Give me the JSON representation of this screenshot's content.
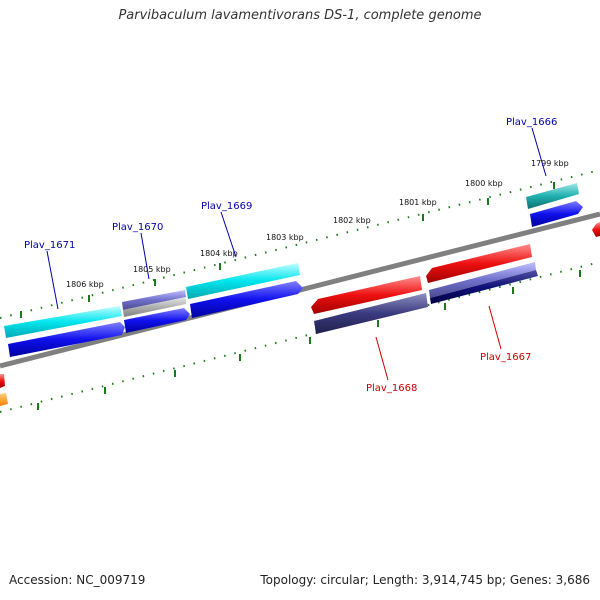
{
  "title": "Parvibaculum lavamentivorans DS-1, complete genome",
  "accession": "Accession: NC_009719",
  "summary": "Topology: circular; Length: 3,914,745 bp; Genes: 3,686",
  "scale_labels": [
    "1799 kbp",
    "1800 kbp",
    "1801 kbp",
    "1802 kbp",
    "1803 kbp",
    "1804 kbp",
    "1805 kbp",
    "1806 kbp"
  ],
  "genes": [
    {
      "id": "Plav_1666",
      "strand": "plus"
    },
    {
      "id": "Plav_1667",
      "strand": "minus"
    },
    {
      "id": "Plav_1668",
      "strand": "minus"
    },
    {
      "id": "Plav_1669",
      "strand": "plus"
    },
    {
      "id": "Plav_1670",
      "strand": "plus"
    },
    {
      "id": "Plav_1671",
      "strand": "plus"
    }
  ],
  "colors": {
    "label_plus": "#0000aa",
    "label_minus": "#cc0000",
    "backbone": "#808080",
    "ticks": "#1a7a1a",
    "cyan": "#00e5ee",
    "blue": "#1010ee",
    "red": "#ee1010",
    "navy": "#3a3a80",
    "lavender": "#7070cc"
  }
}
